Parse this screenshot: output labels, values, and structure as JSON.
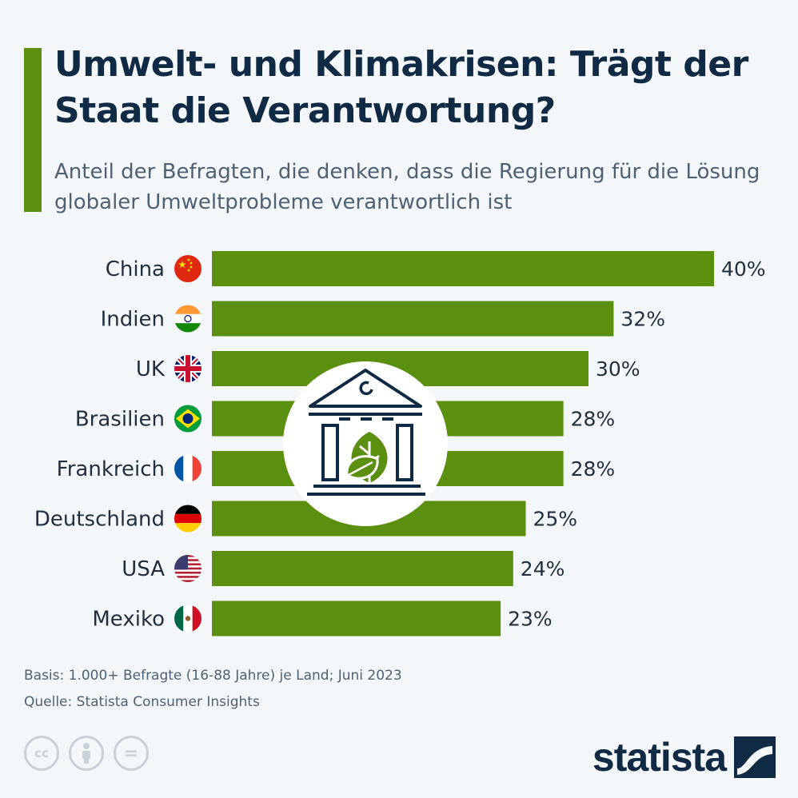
{
  "header": {
    "title": "Umwelt- und Klimakrisen: Trägt der Staat die Verantwortung?",
    "subtitle": "Anteil der Befragten, die denken, dass die Regierung für die Lösung globaler Umweltprobleme verantwortlich ist"
  },
  "chart_data": {
    "type": "bar",
    "orientation": "horizontal",
    "categories": [
      "China",
      "Indien",
      "UK",
      "Brasilien",
      "Frankreich",
      "Deutschland",
      "USA",
      "Mexiko"
    ],
    "values": [
      40,
      32,
      30,
      28,
      28,
      25,
      24,
      23
    ],
    "value_labels": [
      "40%",
      "32%",
      "30%",
      "28%",
      "28%",
      "25%",
      "24%",
      "23%"
    ],
    "flags": [
      "china-flag-icon",
      "india-flag-icon",
      "uk-flag-icon",
      "brazil-flag-icon",
      "france-flag-icon",
      "germany-flag-icon",
      "usa-flag-icon",
      "mexico-flag-icon"
    ],
    "xlim": [
      0,
      40
    ],
    "bar_color": "#5a8f0f",
    "grid": false,
    "center_icon": "government-building-leaf-icon"
  },
  "footer": {
    "basis": "Basis: 1.000+ Befragte (16-88 Jahre) je Land; Juni 2023",
    "source": "Quelle: Statista Consumer Insights",
    "license_icons": [
      "cc-icon",
      "by-icon",
      "nd-icon"
    ],
    "cc_label": "cc",
    "nd_label": "="
  },
  "brand": {
    "name": "statista",
    "color": "#0f2a44"
  }
}
